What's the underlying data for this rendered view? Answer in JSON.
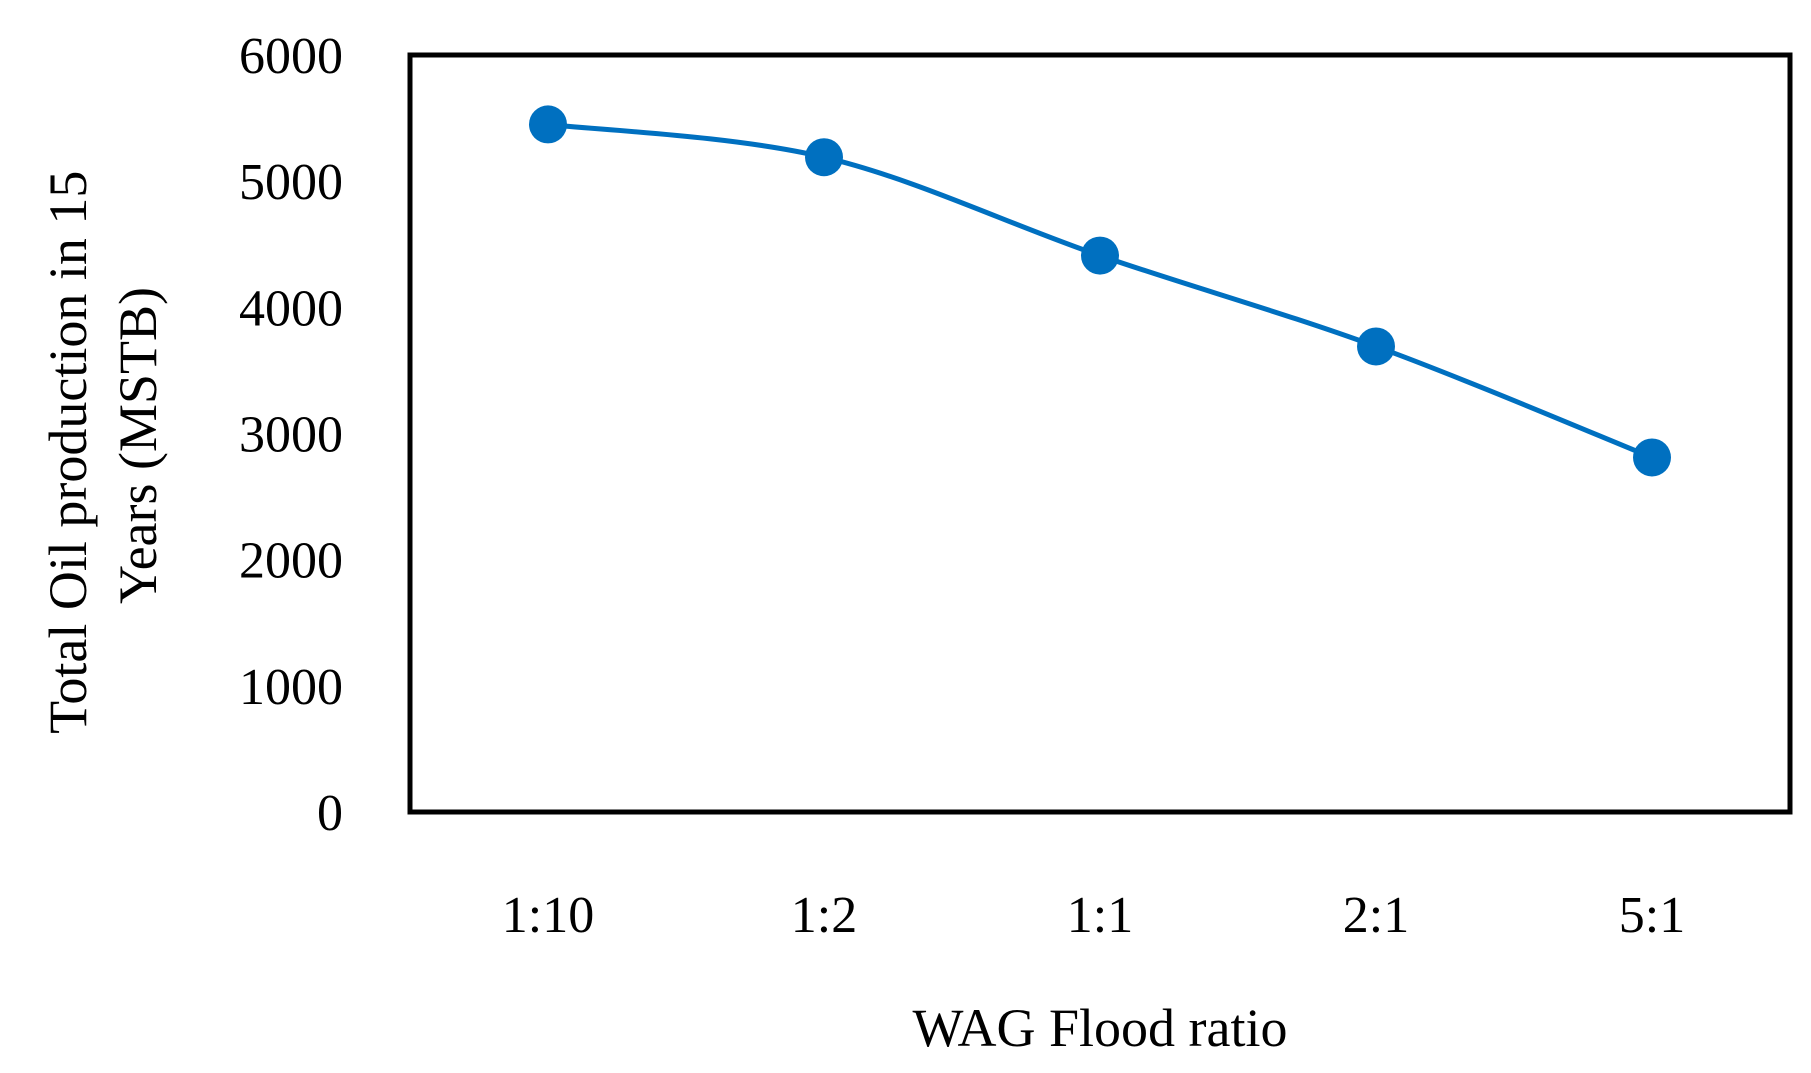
{
  "chart_data": {
    "type": "line",
    "title": "",
    "xlabel": "WAG Flood ratio",
    "ylabel_lines": [
      "Total Oil production in 15",
      "Years (MSTB)"
    ],
    "categories": [
      "1:10",
      "1:2",
      "1:1",
      "2:1",
      "5:1"
    ],
    "series": [
      {
        "name": "Total Oil production",
        "values": [
          5450,
          5190,
          4410,
          3690,
          2810
        ],
        "color": "#0070c0",
        "smooth": true,
        "markers": true
      }
    ],
    "ylim": [
      0,
      6000
    ],
    "yticks": [
      0,
      1000,
      2000,
      3000,
      4000,
      5000,
      6000
    ],
    "ytick_labels": [
      "0",
      "1000",
      "2000",
      "3000",
      "4000",
      "5000",
      "6000"
    ],
    "grid": false,
    "legend": "none"
  }
}
